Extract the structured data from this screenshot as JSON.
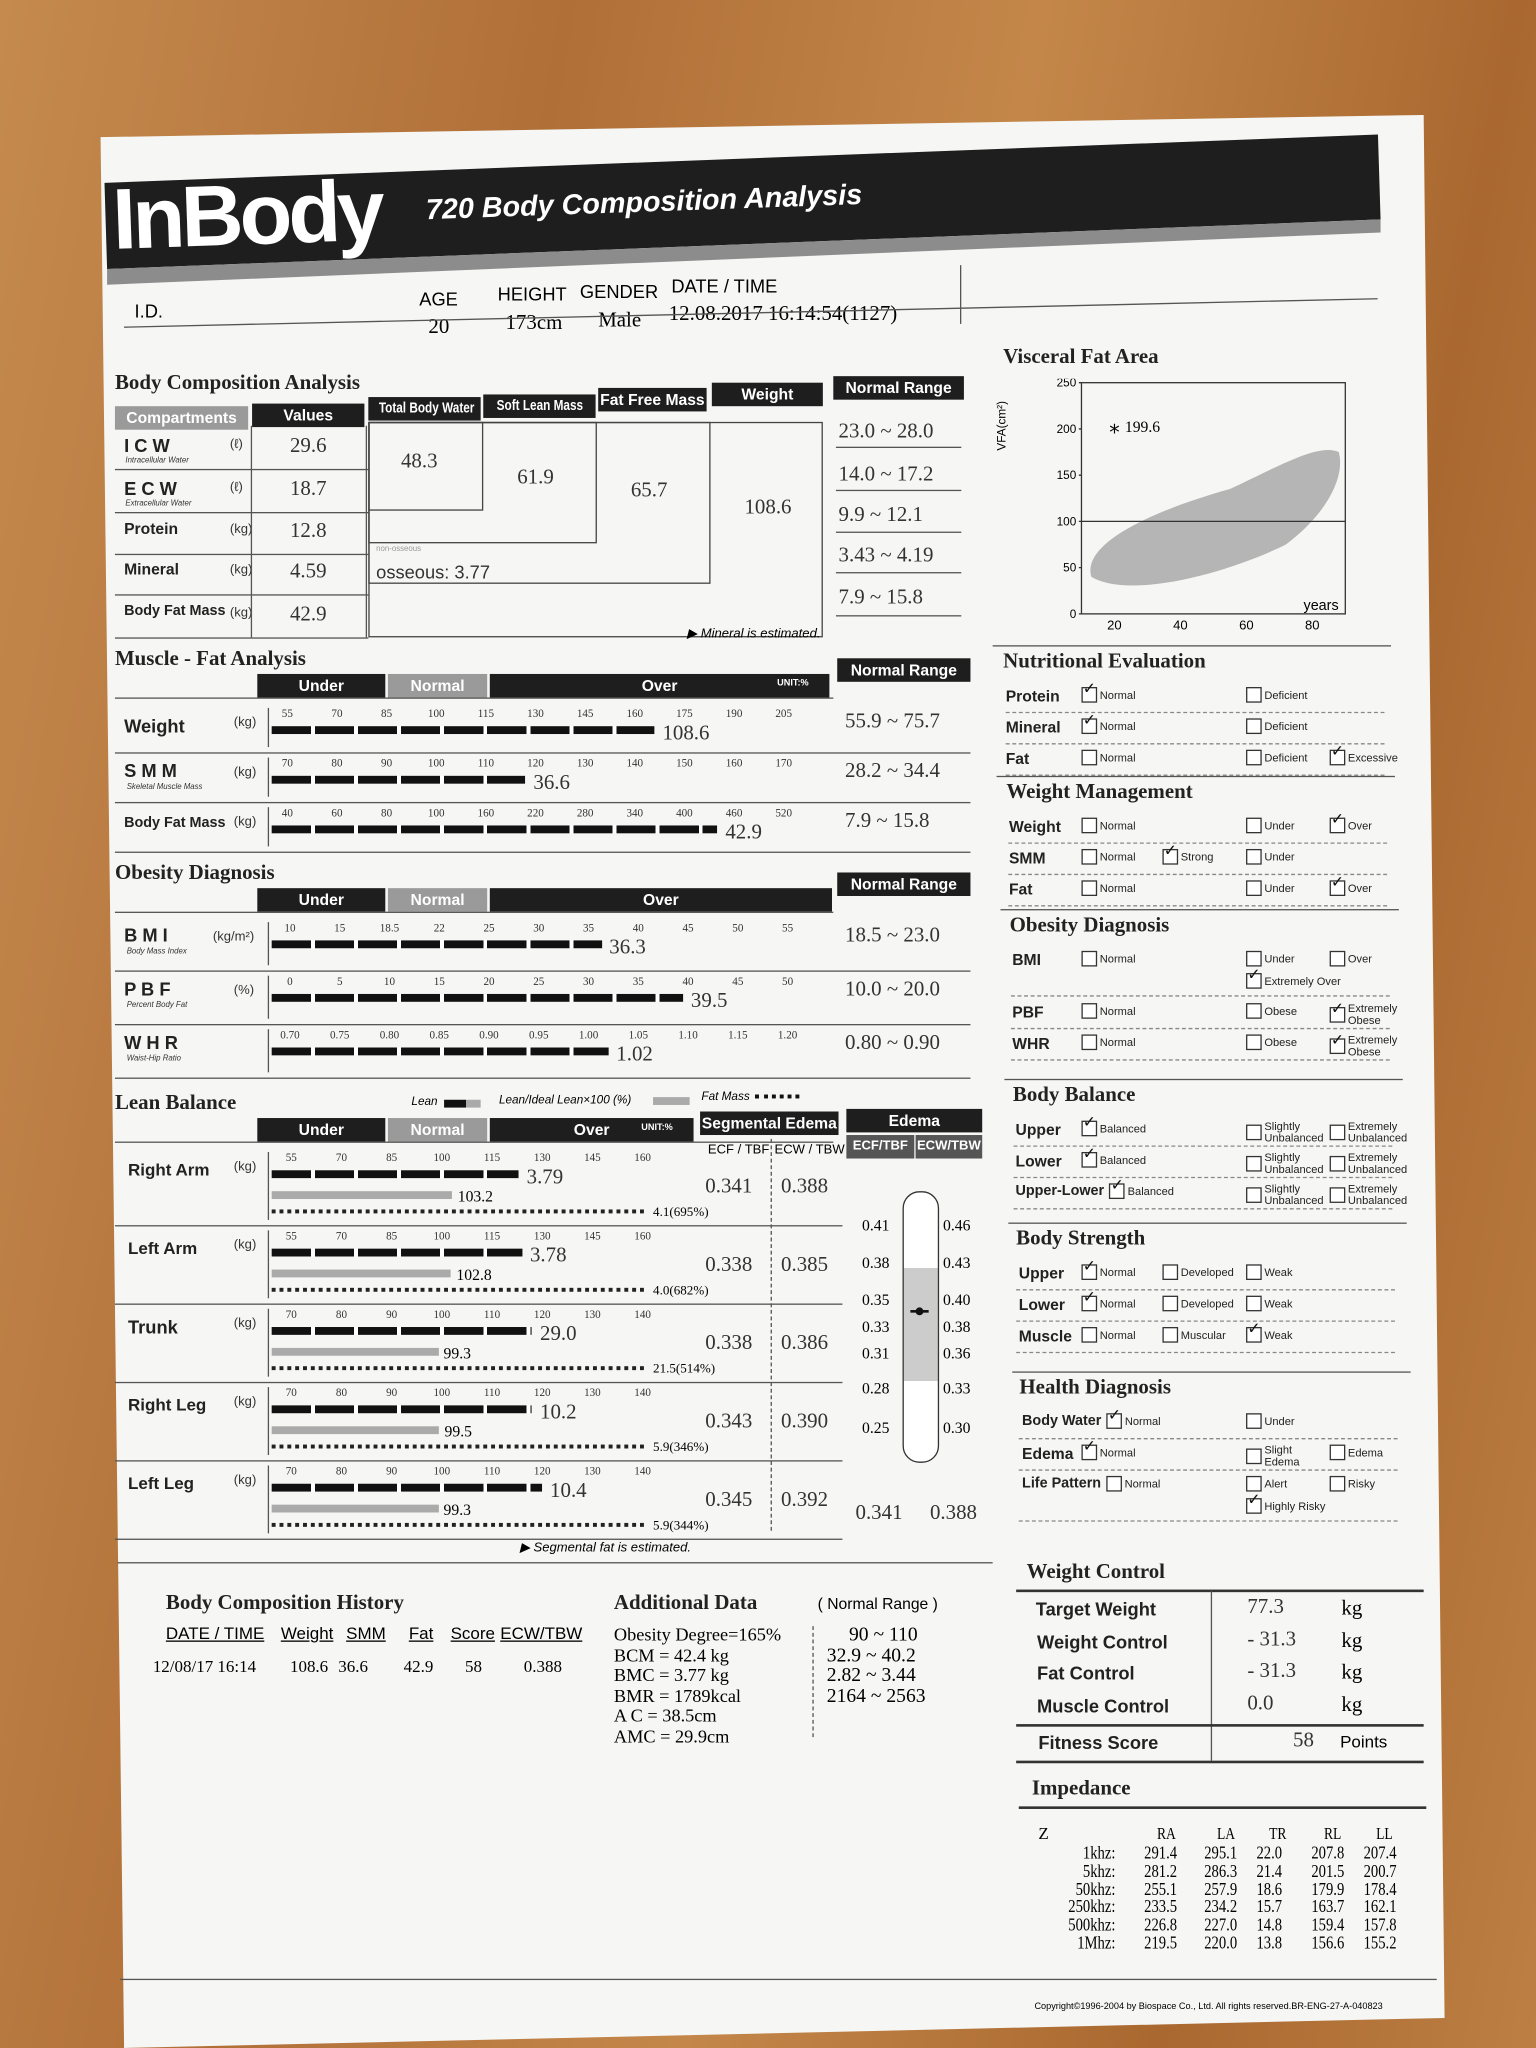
{
  "colors": {
    "header_black": "#1e1e1e",
    "header_gray": "#9a9a9a",
    "paper": "#f7f7f5",
    "desk": "#b5773f"
  },
  "header": {
    "brand": "InBody",
    "subtitle": "720 Body Composition Analysis"
  },
  "info": {
    "id_label": "I.D.",
    "age_label": "AGE",
    "age": "20",
    "height_label": "HEIGHT",
    "height": "173cm",
    "gender_label": "GENDER",
    "gender": "Male",
    "datetime_label": "DATE / TIME",
    "datetime": "12.08.2017 16:14:54(1127)"
  },
  "bca": {
    "title": "Body Composition Analysis",
    "headers": {
      "compartments": "Compartments",
      "values": "Values",
      "tbw": "Total Body Water",
      "slm": "Soft Lean Mass",
      "ffm": "Fat Free Mass",
      "weight": "Weight",
      "normal": "Normal Range"
    },
    "rows": [
      {
        "label": "I C W",
        "sub": "Intracellular Water",
        "unit": "(ℓ)",
        "value": "29.6",
        "range": "23.0 ~ 28.0"
      },
      {
        "label": "E C W",
        "sub": "Extracellular Water",
        "unit": "(ℓ)",
        "value": "18.7",
        "range": "14.0 ~ 17.2"
      },
      {
        "label": "Protein",
        "sub": "",
        "unit": "(kg)",
        "value": "12.8",
        "range": "9.9 ~ 12.1"
      },
      {
        "label": "Mineral",
        "sub": "",
        "unit": "(kg)",
        "value": "4.59",
        "range": "3.43 ~ 4.19"
      },
      {
        "label": "Body Fat Mass",
        "sub": "",
        "unit": "(kg)",
        "value": "42.9",
        "range": "7.9 ~ 15.8"
      }
    ],
    "tbw": "48.3",
    "slm": "61.9",
    "ffm": "65.7",
    "weight": "108.6",
    "nonosseous": "non-osseous",
    "osseous": "osseous: 3.77",
    "note": "▶ Mineral is estimated."
  },
  "mfa": {
    "title": "Muscle - Fat Analysis",
    "under": "Under",
    "normal": "Normal",
    "over": "Over",
    "unit": "UNIT:%",
    "range_header": "Normal Range",
    "rows": [
      {
        "label": "Weight",
        "sub": "",
        "unit": "(kg)",
        "ticks": [
          "55",
          "70",
          "85",
          "100",
          "115",
          "130",
          "145",
          "160",
          "175",
          "190",
          "205"
        ],
        "level": 166,
        "value": "108.6",
        "range": "55.9 ~ 75.7"
      },
      {
        "label": "S M M",
        "sub": "Skeletal Muscle Mass",
        "unit": "(kg)",
        "ticks": [
          "70",
          "80",
          "90",
          "100",
          "110",
          "120",
          "130",
          "140",
          "150",
          "160",
          "170"
        ],
        "level": 118,
        "value": "36.6",
        "range": "28.2 ~ 34.4"
      },
      {
        "label": "Body Fat Mass",
        "sub": "",
        "unit": "(kg)",
        "ticks": [
          "40",
          "60",
          "80",
          "100",
          "160",
          "220",
          "280",
          "340",
          "400",
          "460",
          "520"
        ],
        "level": 440,
        "value": "42.9",
        "range": "7.9 ~ 15.8"
      }
    ]
  },
  "obesity": {
    "title": "Obesity Diagnosis",
    "under": "Under",
    "normal": "Normal",
    "over": "Over",
    "range_header": "Normal Range",
    "rows": [
      {
        "label": "B M I",
        "sub": "Body Mass Index",
        "unit": "(kg/m²)",
        "ticks": [
          "10",
          "15",
          "18.5",
          "22",
          "25",
          "30",
          "35",
          "40",
          "45",
          "50",
          "55"
        ],
        "level": 36.3,
        "value": "36.3",
        "range": "18.5 ~ 23.0"
      },
      {
        "label": "P B F",
        "sub": "Percent Body Fat",
        "unit": "(%)",
        "ticks": [
          "0",
          "5",
          "10",
          "15",
          "20",
          "25",
          "30",
          "35",
          "40",
          "45",
          "50"
        ],
        "level": 39.5,
        "value": "39.5",
        "range": "10.0 ~ 20.0"
      },
      {
        "label": "W H R",
        "sub": "Waist-Hip Ratio",
        "unit": "",
        "ticks": [
          "0.70",
          "0.75",
          "0.80",
          "0.85",
          "0.90",
          "0.95",
          "1.00",
          "1.05",
          "1.10",
          "1.15",
          "1.20"
        ],
        "level": 1.02,
        "value": "1.02",
        "range": "0.80 ~ 0.90"
      }
    ]
  },
  "lean": {
    "title": "Lean Balance",
    "legend": {
      "lean": "Lean",
      "ideal": "Lean/Ideal Lean×100 (%)",
      "fat": "Fat Mass"
    },
    "under": "Under",
    "normal": "Normal",
    "over": "Over",
    "unit": "UNIT:%",
    "seg_header": "Segmental Edema",
    "ecf_tbf": "ECF / TBF",
    "ecw_tbw": "ECW / TBW",
    "rows": [
      {
        "label": "Right Arm",
        "unit": "(kg)",
        "ticks": [
          "55",
          "70",
          "85",
          "100",
          "115",
          "130",
          "145",
          "160"
        ],
        "level": 123,
        "value": "3.79",
        "ideal": 103.2,
        "ideal_label": "103.2",
        "fat_label": "4.1(695%)",
        "ecf": "0.341",
        "ecw": "0.388"
      },
      {
        "label": "Left Arm",
        "unit": "(kg)",
        "ticks": [
          "55",
          "70",
          "85",
          "100",
          "115",
          "130",
          "145",
          "160"
        ],
        "level": 124,
        "value": "3.78",
        "ideal": 102.8,
        "ideal_label": "102.8",
        "fat_label": "4.0(682%)",
        "ecf": "0.338",
        "ecw": "0.385"
      },
      {
        "label": "Trunk",
        "unit": "(kg)",
        "ticks": [
          "70",
          "80",
          "90",
          "100",
          "110",
          "120",
          "130",
          "140"
        ],
        "level": 118,
        "value": "29.0",
        "ideal": 99.3,
        "ideal_label": "99.3",
        "fat_label": "21.5(514%)",
        "ecf": "0.338",
        "ecw": "0.386"
      },
      {
        "label": "Right Leg",
        "unit": "(kg)",
        "ticks": [
          "70",
          "80",
          "90",
          "100",
          "110",
          "120",
          "130",
          "140"
        ],
        "level": 118,
        "value": "10.2",
        "ideal": 99.5,
        "ideal_label": "99.5",
        "fat_label": "5.9(346%)",
        "ecf": "0.343",
        "ecw": "0.390"
      },
      {
        "label": "Left Leg",
        "unit": "(kg)",
        "ticks": [
          "70",
          "80",
          "90",
          "100",
          "110",
          "120",
          "130",
          "140"
        ],
        "level": 120,
        "value": "10.4",
        "ideal": 99.3,
        "ideal_label": "99.3",
        "fat_label": "5.9(344%)",
        "ecf": "0.345",
        "ecw": "0.392"
      }
    ],
    "note": "▶ Segmental fat is estimated."
  },
  "edema": {
    "title": "Edema",
    "ecf_label": "ECF/TBF",
    "ecw_label": "ECW/TBW",
    "left_ticks": [
      "0.41",
      "0.38",
      "0.35",
      "0.33",
      "0.31",
      "0.28",
      "0.25"
    ],
    "right_ticks": [
      "0.46",
      "0.43",
      "0.40",
      "0.38",
      "0.36",
      "0.33",
      "0.30"
    ],
    "ecf": "0.341",
    "ecw": "0.388"
  },
  "vfa": {
    "title": "Visceral Fat Area",
    "ylabel": "VFA(cm²)",
    "yticks": [
      "250",
      "200",
      "150",
      "100",
      "50",
      "0"
    ],
    "xticks": [
      "20",
      "40",
      "60",
      "80"
    ],
    "xunit": "years",
    "point_age": 20,
    "point_value": 199.6,
    "point_label": "199.6"
  },
  "panels": [
    {
      "title": "Nutritional Evaluation",
      "rows": [
        {
          "label": "Protein",
          "options": [
            {
              "label": "Normal",
              "checked": true
            },
            null,
            {
              "label": "Deficient",
              "checked": false
            },
            null
          ]
        },
        {
          "label": "Mineral",
          "options": [
            {
              "label": "Normal",
              "checked": true
            },
            null,
            {
              "label": "Deficient",
              "checked": false
            },
            null
          ]
        },
        {
          "label": "Fat",
          "options": [
            {
              "label": "Normal",
              "checked": false
            },
            null,
            {
              "label": "Deficient",
              "checked": false
            },
            {
              "label": "Excessive",
              "checked": true
            }
          ]
        }
      ]
    },
    {
      "title": "Weight Management",
      "rows": [
        {
          "label": "Weight",
          "options": [
            {
              "label": "Normal",
              "checked": false
            },
            null,
            {
              "label": "Under",
              "checked": false
            },
            {
              "label": "Over",
              "checked": true
            }
          ]
        },
        {
          "label": "SMM",
          "options": [
            {
              "label": "Normal",
              "checked": false
            },
            {
              "label": "Strong",
              "checked": true
            },
            {
              "label": "Under",
              "checked": false
            },
            null
          ]
        },
        {
          "label": "Fat",
          "options": [
            {
              "label": "Normal",
              "checked": false
            },
            null,
            {
              "label": "Under",
              "checked": false
            },
            {
              "label": "Over",
              "checked": true
            }
          ]
        }
      ]
    },
    {
      "title": "Obesity Diagnosis",
      "rows": [
        {
          "label": "BMI",
          "options": [
            {
              "label": "Normal",
              "checked": false
            },
            null,
            {
              "label": "Under",
              "checked": false
            },
            {
              "label": "Over",
              "checked": false
            }
          ],
          "extra": {
            "label": "Extremely Over",
            "checked": true
          }
        },
        {
          "label": "PBF",
          "options": [
            {
              "label": "Normal",
              "checked": false
            },
            null,
            {
              "label": "Obese",
              "checked": false
            },
            {
              "label": "Extremely Obese",
              "checked": true
            }
          ]
        },
        {
          "label": "WHR",
          "options": [
            {
              "label": "Normal",
              "checked": false
            },
            null,
            {
              "label": "Obese",
              "checked": false
            },
            {
              "label": "Extremely Obese",
              "checked": true
            }
          ]
        }
      ]
    },
    {
      "title": "Body Balance",
      "rows": [
        {
          "label": "Upper",
          "options": [
            {
              "label": "Balanced",
              "checked": true
            },
            null,
            {
              "label": "Slightly Unbalanced",
              "checked": false
            },
            {
              "label": "Extremely Unbalanced",
              "checked": false
            }
          ]
        },
        {
          "label": "Lower",
          "options": [
            {
              "label": "Balanced",
              "checked": true
            },
            null,
            {
              "label": "Slightly Unbalanced",
              "checked": false
            },
            {
              "label": "Extremely Unbalanced",
              "checked": false
            }
          ]
        },
        {
          "label": "Upper-Lower",
          "options": [
            {
              "label": "Balanced",
              "checked": true
            },
            null,
            {
              "label": "Slightly Unbalanced",
              "checked": false
            },
            {
              "label": "Extremely Unbalanced",
              "checked": false
            }
          ]
        }
      ]
    },
    {
      "title": "Body Strength",
      "rows": [
        {
          "label": "Upper",
          "options": [
            {
              "label": "Normal",
              "checked": true
            },
            {
              "label": "Developed",
              "checked": false
            },
            {
              "label": "Weak",
              "checked": false
            },
            null
          ]
        },
        {
          "label": "Lower",
          "options": [
            {
              "label": "Normal",
              "checked": true
            },
            {
              "label": "Developed",
              "checked": false
            },
            {
              "label": "Weak",
              "checked": false
            },
            null
          ]
        },
        {
          "label": "Muscle",
          "options": [
            {
              "label": "Normal",
              "checked": false
            },
            {
              "label": "Muscular",
              "checked": false
            },
            {
              "label": "Weak",
              "checked": true
            },
            null
          ]
        }
      ]
    },
    {
      "title": "Health Diagnosis",
      "rows": [
        {
          "label": "Body Water",
          "options": [
            {
              "label": "Normal",
              "checked": true
            },
            null,
            {
              "label": "Under",
              "checked": false
            },
            null
          ]
        },
        {
          "label": "Edema",
          "options": [
            {
              "label": "Normal",
              "checked": true
            },
            null,
            {
              "label": "Slight Edema",
              "checked": false
            },
            {
              "label": "Edema",
              "checked": false
            }
          ]
        },
        {
          "label": "Life Pattern",
          "options": [
            {
              "label": "Normal",
              "checked": false
            },
            null,
            {
              "label": "Alert",
              "checked": false
            },
            {
              "label": "Risky",
              "checked": false
            }
          ],
          "extra": {
            "label": "Highly Risky",
            "checked": true
          }
        }
      ]
    }
  ],
  "weight_control": {
    "title": "Weight Control",
    "rows": [
      {
        "label": "Target Weight",
        "value": "77.3",
        "unit": "kg"
      },
      {
        "label": "Weight Control",
        "value": "- 31.3",
        "unit": "kg"
      },
      {
        "label": "Fat Control",
        "value": "- 31.3",
        "unit": "kg"
      },
      {
        "label": "Muscle Control",
        "value": "0.0",
        "unit": "kg"
      }
    ],
    "fitness_label": "Fitness Score",
    "fitness_value": "58",
    "fitness_unit": "Points"
  },
  "impedance": {
    "title": "Impedance",
    "corner": "Z",
    "columns": [
      "RA",
      "LA",
      "TR",
      "RL",
      "LL"
    ],
    "rows": [
      {
        "freq": "1khz:",
        "values": [
          "291.4",
          "295.1",
          "22.0",
          "207.8",
          "207.4"
        ]
      },
      {
        "freq": "5khz:",
        "values": [
          "281.2",
          "286.3",
          "21.4",
          "201.5",
          "200.7"
        ]
      },
      {
        "freq": "50khz:",
        "values": [
          "255.1",
          "257.9",
          "18.6",
          "179.9",
          "178.4"
        ]
      },
      {
        "freq": "250khz:",
        "values": [
          "233.5",
          "234.2",
          "15.7",
          "163.7",
          "162.1"
        ]
      },
      {
        "freq": "500khz:",
        "values": [
          "226.8",
          "227.0",
          "14.8",
          "159.4",
          "157.8"
        ]
      },
      {
        "freq": "1Mhz:",
        "values": [
          "219.5",
          "220.0",
          "13.8",
          "156.6",
          "155.2"
        ]
      }
    ]
  },
  "history": {
    "title": "Body Composition History",
    "columns": [
      "DATE / TIME",
      "Weight",
      "SMM",
      "Fat",
      "Score",
      "ECW/TBW"
    ],
    "rows": [
      [
        "12/08/17 16:14",
        "108.6",
        "36.6",
        "42.9",
        "58",
        "0.388"
      ]
    ]
  },
  "additional": {
    "title": "Additional Data",
    "range_header": "( Normal Range )",
    "rows": [
      {
        "text": "Obesity Degree=165%",
        "range": "90 ~ 110"
      },
      {
        "text": "BCM = 42.4 kg",
        "range": "32.9 ~ 40.2"
      },
      {
        "text": "BMC = 3.77 kg",
        "range": "2.82 ~ 3.44"
      },
      {
        "text": "BMR = 1789kcal",
        "range": "2164 ~ 2563"
      },
      {
        "text": "A C = 38.5cm",
        "range": ""
      },
      {
        "text": "AMC = 29.9cm",
        "range": ""
      }
    ]
  },
  "copyright": "Copyright©1996-2004 by Biospace Co., Ltd. All rights reserved.BR-ENG-27-A-040823"
}
